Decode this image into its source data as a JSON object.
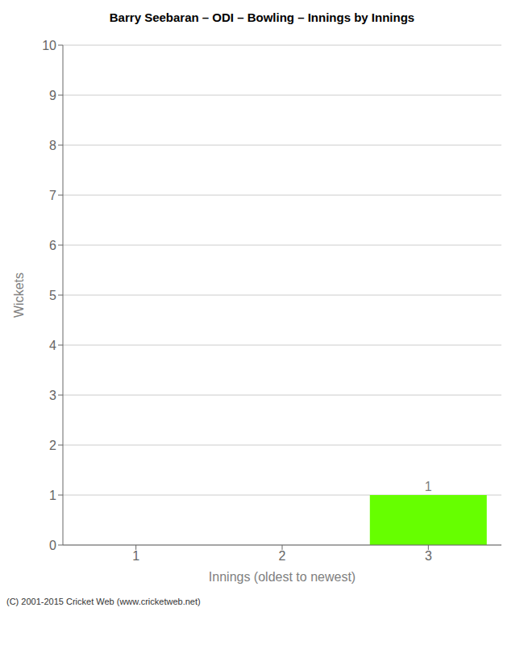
{
  "chart_data": {
    "type": "bar",
    "title": "Barry Seebaran – ODI – Bowling – Innings by Innings",
    "x_label": "Innings (oldest to newest)",
    "y_label": "Wickets",
    "categories": [
      "1",
      "2",
      "3"
    ],
    "values": [
      0,
      0,
      1
    ],
    "color": "#66ff00",
    "ylim": [
      0,
      10
    ],
    "yticks": [
      0,
      1,
      2,
      3,
      4,
      5,
      6,
      7,
      8,
      9,
      10
    ],
    "grid": true,
    "data_labels": true,
    "annotations": [
      "(C) 2001-2015 Cricket Web (www.cricketweb.net)"
    ]
  }
}
